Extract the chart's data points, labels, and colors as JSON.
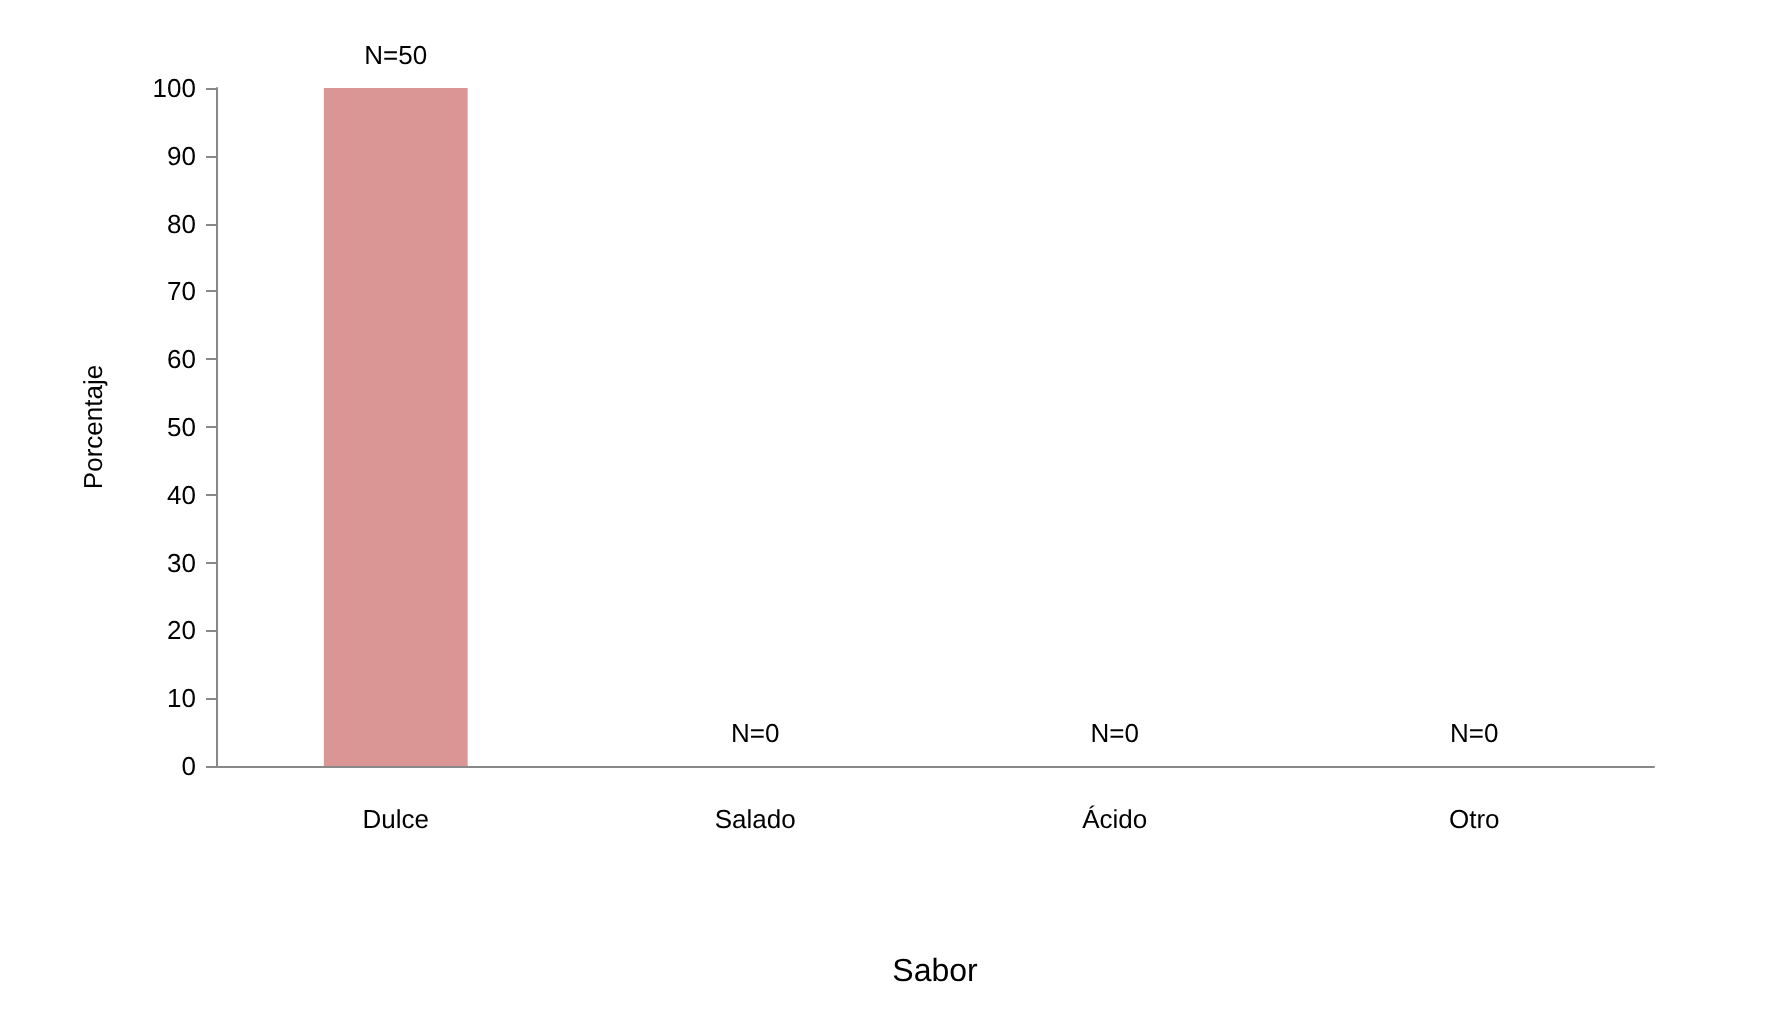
{
  "chart_data": {
    "type": "bar",
    "xlabel": "Sabor",
    "ylabel": "Porcentaje",
    "categories": [
      "Dulce",
      "Salado",
      "Ácido",
      "Otro"
    ],
    "values": [
      100,
      0,
      0,
      0
    ],
    "annotations": [
      {
        "text": "N=50",
        "x": "Dulce",
        "y": 100
      },
      {
        "text": "N=0",
        "x": "Salado",
        "y": 0
      },
      {
        "text": "N=0",
        "x": "Ácido",
        "y": 0
      },
      {
        "text": "N=0",
        "x": "Otro",
        "y": 0
      }
    ],
    "color": "#d99694",
    "ylim": [
      0,
      100
    ],
    "yticks": [
      0,
      10,
      20,
      30,
      40,
      50,
      60,
      70,
      80,
      90,
      100
    ],
    "grid": false
  }
}
